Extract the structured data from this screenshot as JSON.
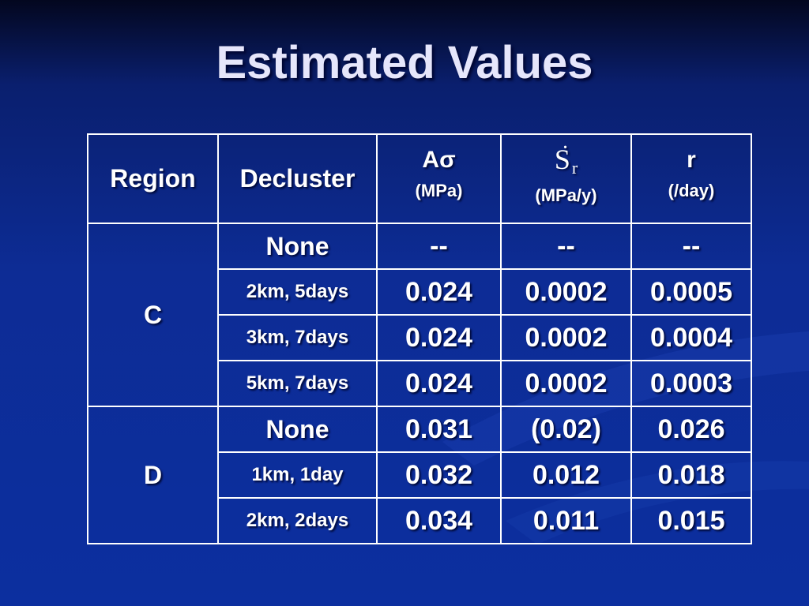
{
  "slide": {
    "title": "Estimated Values"
  },
  "table": {
    "headers": {
      "region": "Region",
      "decluster": "Decluster",
      "a_sigma": "Aσ",
      "a_sigma_unit": "(MPa)",
      "sr_symbol": "S",
      "sr_subscript": "r",
      "sr_unit": "(MPa/y)",
      "r": "r",
      "r_unit": "(/day)"
    },
    "groups": [
      {
        "region": "C",
        "rows": [
          {
            "decluster": "None",
            "a_sigma": "--",
            "sr": "--",
            "r": "--"
          },
          {
            "decluster": "2km, 5days",
            "a_sigma": "0.024",
            "sr": "0.0002",
            "r": "0.0005"
          },
          {
            "decluster": "3km, 7days",
            "a_sigma": "0.024",
            "sr": "0.0002",
            "r": "0.0004"
          },
          {
            "decluster": "5km, 7days",
            "a_sigma": "0.024",
            "sr": "0.0002",
            "r": "0.0003"
          }
        ]
      },
      {
        "region": "D",
        "rows": [
          {
            "decluster": "None",
            "a_sigma": "0.031",
            "sr": "(0.02)",
            "r": "0.026"
          },
          {
            "decluster": "1km, 1day",
            "a_sigma": "0.032",
            "sr": "0.012",
            "r": "0.018"
          },
          {
            "decluster": "2km, 2days",
            "a_sigma": "0.034",
            "sr": "0.011",
            "r": "0.015"
          }
        ]
      }
    ]
  }
}
